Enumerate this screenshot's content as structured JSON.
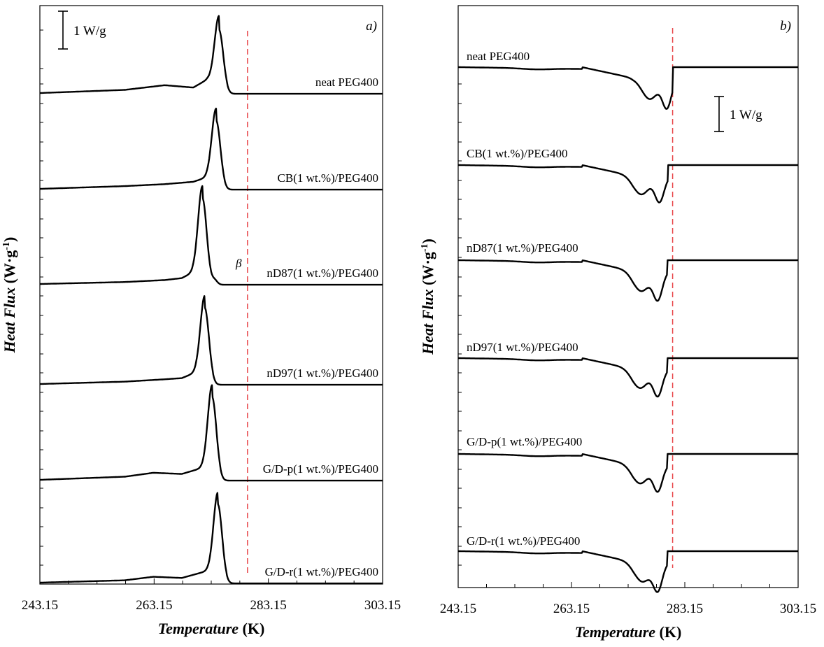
{
  "chart_data": [
    {
      "type": "line",
      "panel": "a)",
      "xlabel": "Temperature (K)",
      "xlabel_parts": [
        "Temperature",
        "(K)"
      ],
      "ylabel": "Heat Flux (W·g-1)",
      "ylabel_parts": [
        "Heat Flux",
        "(W·g",
        "-1",
        ")"
      ],
      "xlim": [
        243.15,
        303.15
      ],
      "x_ticks": [
        "243.15",
        "263.15",
        "283.15",
        "303.15"
      ],
      "scale_bar": "1 W/g",
      "reference_line_x": 279.5,
      "reference_line_color": "#e8474a",
      "annotation": {
        "text": "β",
        "x": 277.8
      },
      "series": [
        {
          "name": "neat PEG400",
          "peak_x": 274.5,
          "peak_height_Wg": 1.62,
          "baseline_x": [
            243.15,
            258,
            265,
            270,
            272.5
          ],
          "baseline_y": [
            0.0,
            0.08,
            0.2,
            0.14,
            0.35
          ],
          "shape": "exotherm"
        },
        {
          "name": "CB(1 wt.%)/PEG400",
          "peak_x": 274.0,
          "peak_height_Wg": 1.75,
          "baseline_x": [
            243.15,
            258,
            265,
            270,
            272.5
          ],
          "baseline_y": [
            0.0,
            0.07,
            0.12,
            0.18,
            0.3
          ],
          "shape": "exotherm"
        },
        {
          "name": "nD87(1 wt.%)/PEG400",
          "peak_x": 271.6,
          "peak_height_Wg": 2.2,
          "baseline_x": [
            243.15,
            258,
            265,
            268,
            270
          ],
          "baseline_y": [
            0.0,
            0.05,
            0.1,
            0.15,
            0.3
          ],
          "shape": "exotherm"
        },
        {
          "name": "nD97(1 wt.%)/PEG400",
          "peak_x": 272.0,
          "peak_height_Wg": 1.95,
          "baseline_x": [
            243.15,
            258,
            265,
            268,
            270.5
          ],
          "baseline_y": [
            0.0,
            0.06,
            0.12,
            0.15,
            0.3
          ],
          "shape": "exotherm"
        },
        {
          "name": "G/D-p(1 wt.%)/PEG400",
          "peak_x": 273.3,
          "peak_height_Wg": 2.12,
          "baseline_x": [
            243.15,
            258,
            263,
            268,
            271.5
          ],
          "baseline_y": [
            0.0,
            0.08,
            0.18,
            0.15,
            0.3
          ],
          "shape": "exotherm"
        },
        {
          "name": "G/D-r(1 wt.%)/PEG400",
          "peak_x": 274.3,
          "peak_height_Wg": 2.0,
          "baseline_x": [
            243.15,
            258,
            263,
            268,
            272.5
          ],
          "baseline_y": [
            0.0,
            0.06,
            0.15,
            0.12,
            0.3
          ],
          "shape": "exotherm"
        }
      ]
    },
    {
      "type": "line",
      "panel": "b)",
      "xlabel": "Temperature (K)",
      "xlabel_parts": [
        "Temperature",
        "(K)"
      ],
      "ylabel": "Heat Flux (W·g-1)",
      "ylabel_parts": [
        "Heat Flux",
        "(W·g",
        "-1",
        ")"
      ],
      "xlim": [
        243.15,
        303.15
      ],
      "x_ticks": [
        "243.15",
        "263.15",
        "283.15",
        "303.15"
      ],
      "scale_bar": "1 W/g",
      "reference_line_x": 281.0,
      "reference_line_color": "#e8474a",
      "series": [
        {
          "name": "neat PEG400",
          "dip1_x": 277.0,
          "dip2_x": 280.0,
          "depth_Wg": 1.05,
          "onset_x": 281.0,
          "shape": "endotherm"
        },
        {
          "name": "CB(1 wt.%)/PEG400",
          "dip1_x": 275.5,
          "dip2_x": 278.7,
          "depth_Wg": 0.92,
          "onset_x": 280.2,
          "shape": "endotherm"
        },
        {
          "name": "nD87(1 wt.%)/PEG400",
          "dip1_x": 275.5,
          "dip2_x": 278.4,
          "depth_Wg": 1.0,
          "onset_x": 280.0,
          "shape": "endotherm"
        },
        {
          "name": "nD97(1 wt.%)/PEG400",
          "dip1_x": 275.3,
          "dip2_x": 278.4,
          "depth_Wg": 0.95,
          "onset_x": 280.0,
          "shape": "endotherm"
        },
        {
          "name": "G/D-p(1 wt.%)/PEG400",
          "dip1_x": 275.3,
          "dip2_x": 278.4,
          "depth_Wg": 0.93,
          "onset_x": 280.0,
          "shape": "endotherm"
        },
        {
          "name": "G/D-r(1 wt.%)/PEG400",
          "dip1_x": 275.7,
          "dip2_x": 278.4,
          "depth_Wg": 0.98,
          "onset_x": 280.0,
          "shape": "endotherm"
        }
      ]
    }
  ]
}
